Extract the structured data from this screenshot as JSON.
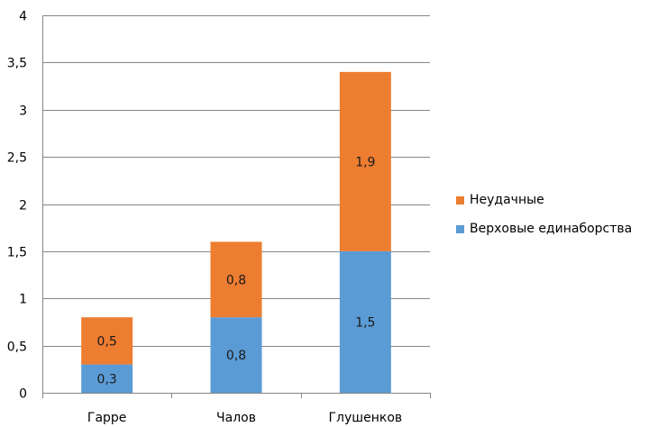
{
  "chart_data": {
    "type": "bar",
    "stacked": true,
    "categories": [
      "Гарре",
      "Чалов",
      "Глушенков"
    ],
    "series": [
      {
        "name": "Верховые единаборства",
        "values": [
          0.3,
          0.8,
          1.5
        ],
        "labels": [
          "0,3",
          "0,8",
          "1,5"
        ],
        "color": "#5B9BD5"
      },
      {
        "name": "Неудачные",
        "values": [
          0.5,
          0.8,
          1.9
        ],
        "labels": [
          "0,5",
          "0,8",
          "1,9"
        ],
        "color": "#ED7D31"
      }
    ],
    "ylim": [
      0,
      4
    ],
    "yticks": [
      0,
      0.5,
      1,
      1.5,
      2,
      2.5,
      3,
      3.5,
      4
    ],
    "ytick_labels": [
      "0",
      "0,5",
      "1",
      "1,5",
      "2",
      "2,5",
      "3",
      "3,5",
      "4"
    ],
    "grid": true,
    "legend_position": "right"
  }
}
